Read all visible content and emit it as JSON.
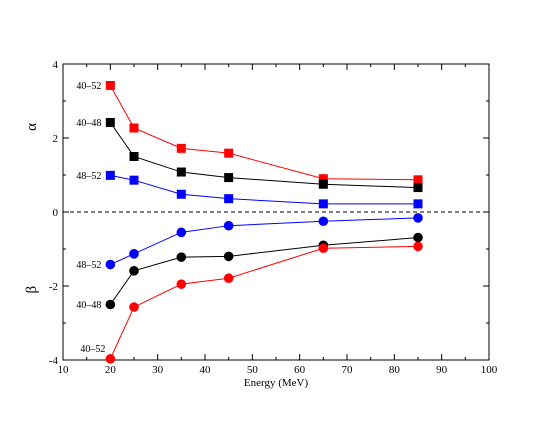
{
  "chart_data": {
    "type": "line",
    "xlabel": "Energy (MeV)",
    "ylabel": "",
    "xlim": [
      10,
      100
    ],
    "ylim": [
      -4,
      4
    ],
    "x_ticks": [
      "10",
      "20",
      "30",
      "40",
      "50",
      "60",
      "70",
      "80",
      "90",
      "100"
    ],
    "y_ticks": [
      "4",
      "2",
      "0",
      "-2",
      "-4"
    ],
    "side_labels": {
      "upper": "α",
      "lower": "β"
    },
    "reference_line": {
      "y": 0,
      "style": "dashed"
    },
    "x": [
      20,
      25,
      35,
      45,
      65,
      85
    ],
    "series": [
      {
        "group": "alpha",
        "pair": "40-52",
        "marker": "square",
        "color": "#ff0000",
        "values": [
          3.42,
          2.27,
          1.72,
          1.59,
          0.9,
          0.87
        ]
      },
      {
        "group": "alpha",
        "pair": "40-48",
        "marker": "square",
        "color": "#000000",
        "values": [
          2.42,
          1.5,
          1.08,
          0.93,
          0.75,
          0.66
        ]
      },
      {
        "group": "alpha",
        "pair": "48-52",
        "marker": "square",
        "color": "#0000ff",
        "values": [
          0.99,
          0.86,
          0.48,
          0.36,
          0.22,
          0.22
        ]
      },
      {
        "group": "beta",
        "pair": "48-52",
        "marker": "circle",
        "color": "#0000ff",
        "values": [
          -1.42,
          -1.13,
          -0.55,
          -0.37,
          -0.25,
          -0.16
        ]
      },
      {
        "group": "beta",
        "pair": "40-48",
        "marker": "circle",
        "color": "#000000",
        "values": [
          -2.5,
          -1.59,
          -1.22,
          -1.2,
          -0.9,
          -0.69
        ]
      },
      {
        "group": "beta",
        "pair": "40-52",
        "marker": "circle",
        "color": "#ff0000",
        "values": [
          -3.97,
          -2.57,
          -1.95,
          -1.79,
          -0.98,
          -0.93
        ]
      }
    ],
    "annotations": [
      {
        "text": "40–52",
        "series": 0
      },
      {
        "text": "40–48",
        "series": 1
      },
      {
        "text": "48–52",
        "series": 2
      },
      {
        "text": "48–52",
        "series": 3
      },
      {
        "text": "40–48",
        "series": 4
      },
      {
        "text": "40–52",
        "series": 5
      }
    ],
    "grid": false,
    "legend": "none"
  }
}
